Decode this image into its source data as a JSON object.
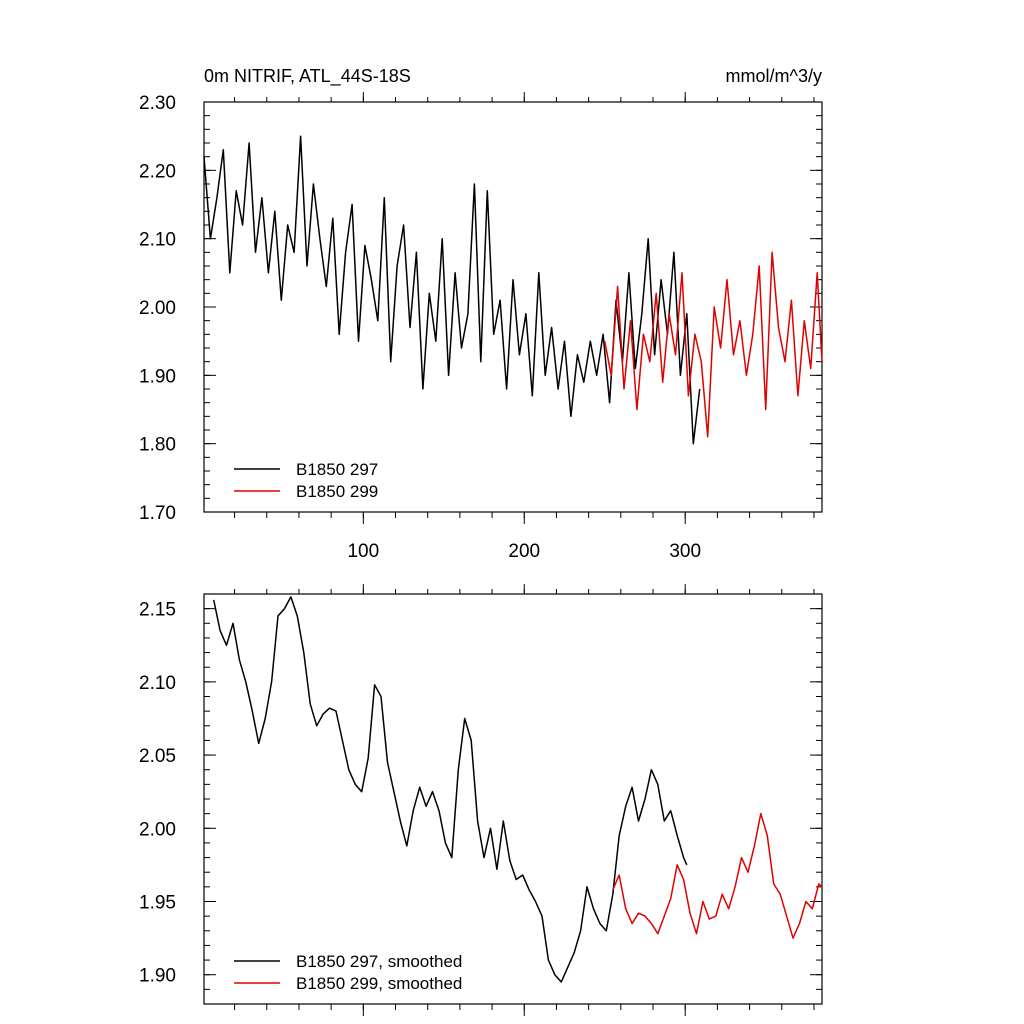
{
  "chart_data": [
    {
      "type": "line",
      "title": "0m NITRIF, ATL_44S-18S",
      "units": "mmol/m^3/y",
      "xlabel": "",
      "ylabel": "",
      "xlim": [
        1,
        385
      ],
      "ylim": [
        1.7,
        2.3
      ],
      "xticks": [
        100,
        200,
        300
      ],
      "xtick_labels": [
        "100",
        "200",
        "300"
      ],
      "yticks": [
        1.7,
        1.8,
        1.9,
        2.0,
        2.1,
        2.2,
        2.3
      ],
      "ytick_labels": [
        "1.70",
        "1.80",
        "1.90",
        "2.00",
        "2.10",
        "2.20",
        "2.30"
      ],
      "legend_position": "bottom-left",
      "series": [
        {
          "name": "B1850 297",
          "color": "#000000",
          "x": [
            1,
            5,
            9,
            13,
            17,
            21,
            25,
            29,
            33,
            37,
            41,
            45,
            49,
            53,
            57,
            61,
            65,
            69,
            73,
            77,
            81,
            85,
            89,
            93,
            97,
            101,
            105,
            109,
            113,
            117,
            121,
            125,
            129,
            133,
            137,
            141,
            145,
            149,
            153,
            157,
            161,
            165,
            169,
            173,
            177,
            181,
            185,
            189,
            193,
            197,
            201,
            205,
            209,
            213,
            217,
            221,
            225,
            229,
            233,
            237,
            241,
            245,
            249,
            253,
            257,
            261,
            265,
            269,
            273,
            277,
            281,
            285,
            289,
            293,
            297,
            301,
            305,
            309
          ],
          "values": [
            2.22,
            2.1,
            2.16,
            2.23,
            2.05,
            2.17,
            2.12,
            2.24,
            2.08,
            2.16,
            2.05,
            2.14,
            2.01,
            2.12,
            2.08,
            2.25,
            2.06,
            2.18,
            2.1,
            2.03,
            2.13,
            1.96,
            2.08,
            2.15,
            1.95,
            2.09,
            2.04,
            1.98,
            2.16,
            1.92,
            2.06,
            2.12,
            1.97,
            2.08,
            1.88,
            2.02,
            1.95,
            2.1,
            1.9,
            2.05,
            1.94,
            1.99,
            2.18,
            1.92,
            2.17,
            1.96,
            2.01,
            1.88,
            2.04,
            1.93,
            1.99,
            1.87,
            2.05,
            1.9,
            1.97,
            1.88,
            1.95,
            1.84,
            1.93,
            1.89,
            1.95,
            1.9,
            1.96,
            1.86,
            2.01,
            1.92,
            2.05,
            1.91,
            1.99,
            2.1,
            1.93,
            2.04,
            1.96,
            2.08,
            1.9,
            1.99,
            1.8,
            1.88
          ]
        },
        {
          "name": "B1850 299",
          "color": "#e00000",
          "x": [
            250,
            254,
            258,
            262,
            266,
            270,
            274,
            278,
            282,
            286,
            290,
            294,
            298,
            302,
            306,
            310,
            314,
            318,
            322,
            326,
            330,
            334,
            338,
            342,
            346,
            350,
            354,
            358,
            362,
            366,
            370,
            374,
            378,
            382,
            385
          ],
          "values": [
            1.95,
            1.9,
            2.03,
            1.88,
            1.98,
            1.85,
            1.96,
            1.92,
            2.02,
            1.89,
            1.99,
            1.93,
            2.05,
            1.87,
            1.96,
            1.92,
            1.81,
            2.0,
            1.94,
            2.04,
            1.93,
            1.98,
            1.9,
            1.96,
            2.06,
            1.85,
            2.08,
            1.97,
            1.92,
            2.01,
            1.87,
            1.98,
            1.91,
            2.05,
            1.92
          ]
        }
      ]
    },
    {
      "type": "line",
      "title": "",
      "xlabel": "",
      "ylabel": "",
      "xlim": [
        1,
        385
      ],
      "ylim": [
        1.88,
        2.16
      ],
      "xticks": [
        100,
        200,
        300
      ],
      "yticks": [
        1.9,
        1.95,
        2.0,
        2.05,
        2.1,
        2.15
      ],
      "ytick_labels": [
        "1.90",
        "1.95",
        "2.00",
        "2.05",
        "2.10",
        "2.15"
      ],
      "legend_position": "bottom-left",
      "series": [
        {
          "name": "B1850 297, smoothed",
          "color": "#000000",
          "x": [
            7,
            11,
            15,
            19,
            23,
            27,
            31,
            35,
            39,
            43,
            47,
            51,
            55,
            59,
            63,
            67,
            71,
            75,
            79,
            83,
            87,
            91,
            95,
            99,
            103,
            107,
            111,
            115,
            119,
            123,
            127,
            131,
            135,
            139,
            143,
            147,
            151,
            155,
            159,
            163,
            167,
            171,
            175,
            179,
            183,
            187,
            191,
            195,
            199,
            203,
            207,
            211,
            215,
            219,
            223,
            227,
            231,
            235,
            239,
            243,
            247,
            251,
            255,
            259,
            263,
            267,
            271,
            275,
            279,
            283,
            287,
            291,
            295,
            299,
            301
          ],
          "values": [
            2.156,
            2.135,
            2.125,
            2.14,
            2.115,
            2.1,
            2.08,
            2.058,
            2.075,
            2.1,
            2.145,
            2.15,
            2.158,
            2.145,
            2.12,
            2.085,
            2.07,
            2.078,
            2.082,
            2.08,
            2.06,
            2.04,
            2.03,
            2.025,
            2.048,
            2.098,
            2.09,
            2.045,
            2.025,
            2.005,
            1.988,
            2.012,
            2.028,
            2.015,
            2.025,
            2.012,
            1.99,
            1.98,
            2.04,
            2.075,
            2.06,
            2.005,
            1.98,
            2.0,
            1.972,
            2.005,
            1.978,
            1.965,
            1.968,
            1.958,
            1.95,
            1.94,
            1.91,
            1.9,
            1.895,
            1.905,
            1.915,
            1.93,
            1.96,
            1.945,
            1.935,
            1.93,
            1.955,
            1.995,
            2.015,
            2.028,
            2.005,
            2.02,
            2.04,
            2.03,
            2.005,
            2.012,
            1.995,
            1.98,
            1.975
          ]
        },
        {
          "name": "B1850 299, smoothed",
          "color": "#e00000",
          "x": [
            255,
            259,
            263,
            267,
            271,
            275,
            279,
            283,
            287,
            291,
            295,
            299,
            303,
            307,
            311,
            315,
            319,
            323,
            327,
            331,
            335,
            339,
            343,
            347,
            351,
            355,
            359,
            363,
            367,
            371,
            375,
            379,
            383,
            385
          ],
          "values": [
            1.958,
            1.968,
            1.945,
            1.935,
            1.942,
            1.94,
            1.935,
            1.928,
            1.94,
            1.952,
            1.975,
            1.965,
            1.942,
            1.928,
            1.95,
            1.938,
            1.94,
            1.955,
            1.945,
            1.96,
            1.98,
            1.97,
            1.988,
            2.01,
            1.995,
            1.962,
            1.955,
            1.94,
            1.925,
            1.935,
            1.95,
            1.945,
            1.962,
            1.96
          ]
        }
      ]
    }
  ]
}
